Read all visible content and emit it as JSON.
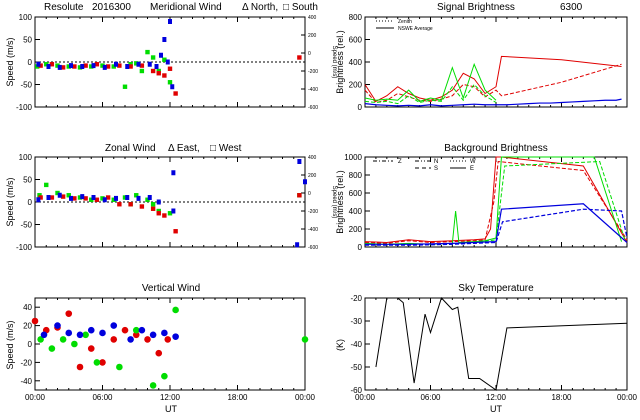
{
  "colors": {
    "red": "#e00000",
    "green": "#00dd00",
    "blue": "#0000dd",
    "black": "#000000"
  },
  "chart_data": [
    {
      "type": "scatter",
      "title_parts": [
        "Resolute",
        "2016300",
        "Meridional Wind",
        "Δ North,",
        "□ South"
      ],
      "ylabel": "Speed (m/s)",
      "y2label": "Speed (m/s)",
      "ylim": [
        -100,
        100
      ],
      "yticks": [
        "100",
        "50",
        "0",
        "-50",
        "-100"
      ],
      "y2ticks": [
        "400",
        "200",
        "0",
        "-200",
        "-400",
        "-600"
      ],
      "xlim": [
        0,
        24
      ],
      "series": [
        {
          "name": "green",
          "color": "green",
          "points": [
            [
              0.2,
              -10
            ],
            [
              1,
              -5
            ],
            [
              2,
              -8
            ],
            [
              3,
              -10
            ],
            [
              4,
              -12
            ],
            [
              5,
              -10
            ],
            [
              6,
              -8
            ],
            [
              7,
              -10
            ],
            [
              8,
              -55
            ],
            [
              8.5,
              -5
            ],
            [
              9,
              -3
            ],
            [
              9.5,
              -20
            ],
            [
              10,
              22
            ],
            [
              10.5,
              10
            ],
            [
              11,
              -20
            ],
            [
              11.5,
              5
            ],
            [
              12,
              -45
            ]
          ]
        },
        {
          "name": "red",
          "color": "red",
          "points": [
            [
              0.5,
              -8
            ],
            [
              1.5,
              -5
            ],
            [
              2.5,
              -12
            ],
            [
              3.5,
              -10
            ],
            [
              4.5,
              -8
            ],
            [
              5.5,
              -5
            ],
            [
              6.5,
              -10
            ],
            [
              7.5,
              -8
            ],
            [
              8.5,
              -10
            ],
            [
              9.5,
              -8
            ],
            [
              10.5,
              -20
            ],
            [
              11,
              -25
            ],
            [
              11.5,
              -30
            ],
            [
              12,
              -15
            ],
            [
              12.5,
              -70
            ],
            [
              23.5,
              10
            ]
          ]
        },
        {
          "name": "blue",
          "color": "blue",
          "points": [
            [
              0.3,
              -5
            ],
            [
              1.2,
              -10
            ],
            [
              2.2,
              -12
            ],
            [
              3.2,
              -8
            ],
            [
              4.2,
              -10
            ],
            [
              5.2,
              -8
            ],
            [
              6.2,
              -12
            ],
            [
              7.2,
              -5
            ],
            [
              8.2,
              -10
            ],
            [
              9.2,
              -5
            ],
            [
              10.2,
              -5
            ],
            [
              10.8,
              -10
            ],
            [
              11.2,
              15
            ],
            [
              11.8,
              0
            ],
            [
              12.2,
              -55
            ],
            [
              12,
              90
            ],
            [
              11.5,
              50
            ]
          ]
        }
      ]
    },
    {
      "type": "scatter",
      "title_parts": [
        "Zonal Wind",
        "Δ East,",
        "□ West"
      ],
      "ylabel": "Speed (m/s)",
      "y2label": "Speed (m/s)",
      "ylim": [
        -100,
        100
      ],
      "yticks": [
        "100",
        "50",
        "0",
        "-50",
        "-100"
      ],
      "y2ticks": [
        "400",
        "200",
        "0",
        "-200",
        "-400",
        "-600"
      ],
      "xlim": [
        0,
        24
      ],
      "series": [
        {
          "name": "green",
          "color": "green",
          "points": [
            [
              0.4,
              15
            ],
            [
              1,
              38
            ],
            [
              2,
              20
            ],
            [
              3,
              15
            ],
            [
              4,
              10
            ],
            [
              5,
              5
            ],
            [
              6,
              8
            ],
            [
              7,
              5
            ],
            [
              8,
              10
            ],
            [
              8.5,
              -5
            ],
            [
              9,
              15
            ],
            [
              10,
              5
            ],
            [
              10.5,
              -5
            ],
            [
              11,
              -20
            ],
            [
              12,
              -25
            ],
            [
              23.5,
              15
            ]
          ]
        },
        {
          "name": "red",
          "color": "red",
          "points": [
            [
              0.5,
              10
            ],
            [
              1.5,
              10
            ],
            [
              2.5,
              12
            ],
            [
              3.5,
              8
            ],
            [
              4.5,
              8
            ],
            [
              5.5,
              5
            ],
            [
              6.5,
              10
            ],
            [
              7.5,
              -5
            ],
            [
              8.5,
              -5
            ],
            [
              9.5,
              -10
            ],
            [
              10.5,
              -15
            ],
            [
              11,
              -25
            ],
            [
              11.5,
              -30
            ],
            [
              12.5,
              -65
            ],
            [
              23.5,
              15
            ]
          ]
        },
        {
          "name": "blue",
          "color": "blue",
          "points": [
            [
              0.3,
              5
            ],
            [
              1.2,
              10
            ],
            [
              2.2,
              15
            ],
            [
              3.2,
              8
            ],
            [
              4.2,
              12
            ],
            [
              5.2,
              10
            ],
            [
              6.2,
              5
            ],
            [
              7.2,
              8
            ],
            [
              8.2,
              10
            ],
            [
              9.2,
              8
            ],
            [
              10.2,
              10
            ],
            [
              11,
              0
            ],
            [
              12.3,
              -20
            ],
            [
              12.3,
              65
            ],
            [
              23.5,
              90
            ],
            [
              23.3,
              -95
            ],
            [
              24,
              45
            ]
          ]
        }
      ]
    },
    {
      "type": "scatter",
      "title": "Vertical Wind",
      "ylabel": "Speed (m/s)",
      "ylim": [
        -50,
        50
      ],
      "yticks": [
        "40",
        "20",
        "0",
        "-20",
        "-40"
      ],
      "yticks_values": [
        40,
        20,
        0,
        -20,
        -40
      ],
      "xlim": [
        0,
        24
      ],
      "xticks": [
        "00:00",
        "06:00",
        "12:00",
        "18:00",
        "00:00"
      ],
      "xlabel": "UT",
      "series": [
        {
          "name": "red",
          "color": "red",
          "points": [
            [
              0,
              25
            ],
            [
              1,
              15
            ],
            [
              2,
              18
            ],
            [
              3,
              33
            ],
            [
              4,
              -25
            ],
            [
              5,
              -5
            ],
            [
              6,
              -20
            ],
            [
              7,
              5
            ],
            [
              8,
              15
            ],
            [
              9,
              10
            ],
            [
              10,
              5
            ],
            [
              11,
              -10
            ],
            [
              11.8,
              5
            ]
          ]
        },
        {
          "name": "green",
          "color": "green",
          "points": [
            [
              0.5,
              5
            ],
            [
              1.5,
              -5
            ],
            [
              2.5,
              5
            ],
            [
              3.5,
              0
            ],
            [
              4.5,
              10
            ],
            [
              5.5,
              -20
            ],
            [
              7.5,
              -25
            ],
            [
              9,
              15
            ],
            [
              10.5,
              -45
            ],
            [
              11.5,
              -35
            ],
            [
              12.5,
              37
            ],
            [
              24,
              5
            ]
          ]
        },
        {
          "name": "blue",
          "color": "blue",
          "points": [
            [
              0.8,
              10
            ],
            [
              2,
              20
            ],
            [
              3,
              12
            ],
            [
              4,
              10
            ],
            [
              5,
              15
            ],
            [
              6,
              12
            ],
            [
              7,
              20
            ],
            [
              8.5,
              5
            ],
            [
              9.5,
              15
            ],
            [
              10.5,
              10
            ],
            [
              11.5,
              12
            ],
            [
              12.5,
              8
            ]
          ]
        }
      ]
    },
    {
      "type": "line",
      "title_parts": [
        "Signal Brightness",
        "6300"
      ],
      "ylabel": "Brightness (rel.)",
      "ylim": [
        0,
        800
      ],
      "yticks": [
        "800",
        "600",
        "400",
        "200",
        "0"
      ],
      "yticks_values": [
        800,
        600,
        400,
        200,
        0
      ],
      "xlim": [
        0,
        24
      ],
      "legend": {
        "position": "top-left",
        "entries": [
          "Zenith",
          "NSWE Average"
        ]
      },
      "series": [
        {
          "name": "red",
          "color": "red",
          "x": [
            0,
            1,
            2,
            3,
            4,
            5,
            6,
            7,
            8,
            9,
            10,
            11,
            12,
            12.5,
            18,
            23.5
          ],
          "y": [
            200,
            50,
            100,
            180,
            120,
            80,
            60,
            90,
            150,
            300,
            250,
            120,
            180,
            450,
            420,
            360
          ]
        },
        {
          "name": "red2",
          "color": "red",
          "x": [
            0,
            1,
            2,
            3,
            4,
            5,
            6,
            7,
            8,
            9,
            10,
            11,
            12,
            12.5,
            18,
            23.5
          ],
          "y": [
            150,
            40,
            60,
            120,
            90,
            60,
            50,
            70,
            100,
            200,
            180,
            90,
            150,
            100,
            220,
            380
          ]
        },
        {
          "name": "green",
          "color": "green",
          "x": [
            0,
            1,
            2,
            3,
            4,
            5,
            6,
            7,
            8,
            9,
            10,
            11,
            12
          ],
          "y": [
            80,
            60,
            70,
            60,
            150,
            50,
            80,
            60,
            350,
            80,
            380,
            150,
            60
          ]
        },
        {
          "name": "green2",
          "color": "green",
          "x": [
            0,
            1,
            2,
            3,
            4,
            5,
            6,
            7,
            8,
            9,
            10,
            11,
            12
          ],
          "y": [
            50,
            40,
            50,
            30,
            100,
            40,
            60,
            50,
            180,
            60,
            200,
            100,
            40
          ]
        },
        {
          "name": "blue",
          "color": "blue",
          "x": [
            0,
            1,
            2,
            3,
            4,
            5,
            6,
            7,
            8,
            9,
            10,
            11,
            12,
            13,
            14,
            15,
            16,
            17,
            18,
            19,
            20,
            21,
            22,
            23,
            23.5
          ],
          "y": [
            30,
            20,
            15,
            10,
            15,
            10,
            20,
            10,
            15,
            20,
            25,
            20,
            20,
            20,
            25,
            30,
            35,
            35,
            40,
            45,
            50,
            55,
            60,
            60,
            70
          ]
        }
      ]
    },
    {
      "type": "line",
      "title": "Background Brightness",
      "ylabel": "Brightness (rel.)",
      "ylim": [
        0,
        1000
      ],
      "yticks": [
        "1000",
        "800",
        "600",
        "400",
        "200",
        "0"
      ],
      "yticks_values": [
        1000,
        800,
        600,
        400,
        200,
        0
      ],
      "xlim": [
        0,
        24
      ],
      "legend": {
        "position": "top-left",
        "entries": [
          "Z",
          "N",
          "S",
          "W",
          "E"
        ]
      },
      "series": [
        {
          "name": "red",
          "color": "red",
          "x": [
            0,
            2,
            4,
            6,
            8,
            10,
            11,
            11.5,
            12,
            12.5,
            20,
            24
          ],
          "y": [
            60,
            50,
            80,
            60,
            70,
            80,
            90,
            200,
            1000,
            1000,
            900,
            50
          ]
        },
        {
          "name": "red2",
          "color": "red",
          "x": [
            0,
            2,
            4,
            6,
            8,
            10,
            11,
            11.8,
            12.2,
            20,
            24
          ],
          "y": [
            50,
            40,
            70,
            50,
            60,
            70,
            80,
            500,
            950,
            850,
            80
          ]
        },
        {
          "name": "green",
          "color": "green",
          "x": [
            0,
            2,
            4,
            6,
            8,
            8.3,
            8.6,
            10,
            11,
            12,
            12.5,
            21,
            23.5
          ],
          "y": [
            40,
            30,
            40,
            30,
            40,
            400,
            50,
            60,
            70,
            100,
            1000,
            1000,
            60
          ]
        },
        {
          "name": "green2",
          "color": "green",
          "x": [
            0,
            2,
            4,
            6,
            8,
            10,
            12,
            12.8,
            21.5,
            23.8
          ],
          "y": [
            30,
            25,
            30,
            25,
            30,
            50,
            80,
            900,
            950,
            80
          ]
        },
        {
          "name": "blue",
          "color": "blue",
          "x": [
            0,
            4,
            8,
            12,
            12.5,
            20,
            24
          ],
          "y": [
            30,
            30,
            40,
            60,
            420,
            480,
            50
          ]
        },
        {
          "name": "blue2",
          "color": "blue",
          "x": [
            0,
            4,
            8,
            12,
            12.6,
            20,
            23.5,
            24
          ],
          "y": [
            20,
            20,
            30,
            50,
            280,
            420,
            400,
            100
          ]
        }
      ]
    },
    {
      "type": "line",
      "title": "Sky Temperature",
      "ylabel": "(K)",
      "ylim": [
        -60,
        -20
      ],
      "yticks": [
        "-20",
        "-30",
        "-40",
        "-50",
        "-60"
      ],
      "yticks_values": [
        -20,
        -30,
        -40,
        -50,
        -60
      ],
      "xlim": [
        0,
        24
      ],
      "xticks": [
        "00:00",
        "06:00",
        "12:00",
        "18:00",
        "00:00"
      ],
      "xlabel": "UT",
      "series": [
        {
          "name": "black",
          "color": "black",
          "x": [
            1,
            2,
            3,
            3.5,
            4.5,
            5.5,
            6,
            7,
            8,
            8.5,
            9.5,
            10.5,
            12,
            13,
            24
          ],
          "y": [
            -50,
            -20,
            -20,
            -22,
            -57,
            -27,
            -35,
            -20,
            -25,
            -24,
            -55,
            -55,
            -60,
            -33,
            -31
          ]
        }
      ]
    }
  ]
}
